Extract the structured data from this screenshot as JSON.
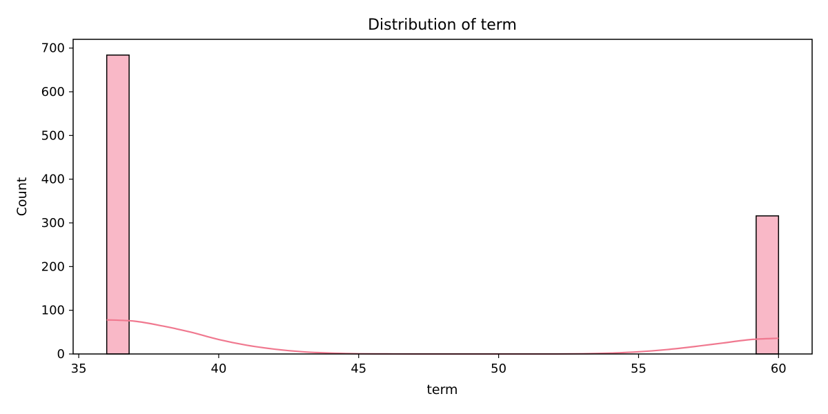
{
  "chart_data": {
    "type": "bar",
    "title": "Distribution of term",
    "xlabel": "term",
    "ylabel": "Count",
    "xlim": [
      34.8,
      61.2
    ],
    "ylim": [
      0,
      720
    ],
    "x_ticks": [
      35,
      40,
      45,
      50,
      55,
      60
    ],
    "y_ticks": [
      0,
      100,
      200,
      300,
      400,
      500,
      600,
      700
    ],
    "bars": [
      {
        "x0": 36.0,
        "x1": 36.8,
        "count": 684
      },
      {
        "x0": 59.2,
        "x1": 60.0,
        "count": 316
      }
    ],
    "kde": {
      "x": [
        36,
        37,
        38,
        39,
        40,
        41,
        42,
        43,
        44,
        45,
        46,
        47,
        48,
        49,
        50,
        51,
        52,
        53,
        54,
        55,
        56,
        57,
        58,
        59,
        60
      ],
      "y": [
        78,
        75,
        64,
        50,
        33,
        20,
        11,
        5,
        2,
        0.5,
        0.2,
        0,
        0,
        0,
        0,
        0,
        0,
        0.5,
        2,
        5,
        10,
        17,
        25,
        33,
        36
      ]
    },
    "grid": false,
    "colors": {
      "bar_fill": "#f9b8c7",
      "bar_edge": "#000000",
      "kde_line": "#f0788f"
    }
  }
}
